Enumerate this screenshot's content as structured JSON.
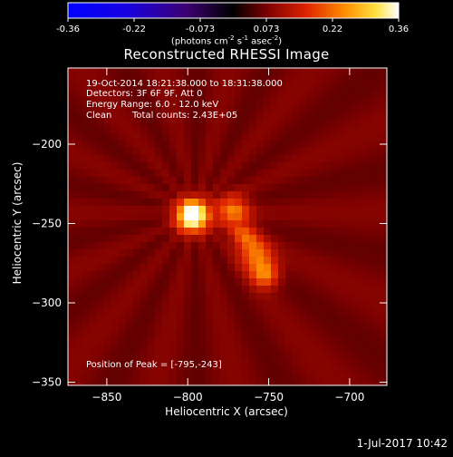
{
  "colorbar": {
    "ticks": [
      "-0.36",
      "-0.22",
      "-0.073",
      "0.073",
      "0.22",
      "0.36"
    ],
    "unit_prefix": "(photons cm",
    "unit_exp1": "-2",
    "unit_mid": " s",
    "unit_exp2": "-1",
    "unit_mid2": " asec",
    "unit_exp3": "-2",
    "unit_suffix": ")",
    "colormap": "red-temperature (negative: blue-purple, positive: red-yellow-white)"
  },
  "annotations": {
    "time_range": "19-Oct-2014 18:21:38.000 to 18:31:38.000",
    "detectors": "Detectors: 3F 6F 9F, Att 0",
    "energy_range": "Energy Range: 6.0 - 12.0 keV",
    "clean_label": "Clean",
    "total_counts": "Total counts: 2.43E+05",
    "peak_position": "Position of Peak = [-795,-243]"
  },
  "footer": {
    "date_stamp": "1-Jul-2017 10:42"
  },
  "chart_data": {
    "type": "heatmap",
    "title": "Reconstructed RHESSI Image",
    "xlabel": "Heliocentric X (arcsec)",
    "ylabel": "Heliocentric Y (arcsec)",
    "xlim": [
      -874,
      -677
    ],
    "ylim": [
      -352,
      -152
    ],
    "xticks": [
      -850,
      -800,
      -750,
      -700
    ],
    "xtick_labels": [
      "−850",
      "−800",
      "−750",
      "−700"
    ],
    "yticks": [
      -200,
      -250,
      -300,
      -350
    ],
    "ytick_labels": [
      "−200",
      "−250",
      "−300",
      "−350"
    ],
    "clim": [
      -0.36,
      0.36
    ],
    "peak": {
      "x": -795,
      "y": -243
    },
    "sources": [
      {
        "x": -797,
        "y": -245,
        "sigma": 7,
        "amp": 0.36
      },
      {
        "x": -772,
        "y": -242,
        "sigma": 7,
        "amp": 0.16
      },
      {
        "x": -765,
        "y": -258,
        "sigma": 6,
        "amp": 0.11
      },
      {
        "x": -758,
        "y": -270,
        "sigma": 7,
        "amp": 0.15
      },
      {
        "x": -752,
        "y": -282,
        "sigma": 6,
        "amp": 0.16
      }
    ],
    "background_level": 0.07
  }
}
